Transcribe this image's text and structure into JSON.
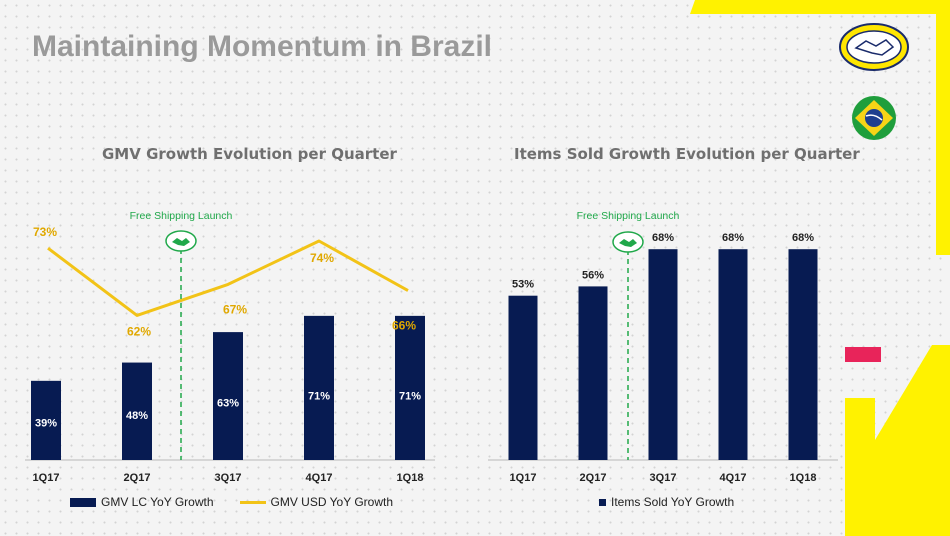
{
  "page": {
    "title": "Maintaining Momentum in Brazil"
  },
  "annotations": {
    "left_marker": "Free Shipping Launch",
    "right_marker": "Free Shipping Launch"
  },
  "colors": {
    "bar": "#071b52",
    "line": "#f2c317",
    "marker": "#20a84a",
    "accent_yellow": "#fff200",
    "accent_pink": "#e8245a"
  },
  "icons": {
    "logo": "handshake-logo-icon",
    "flag": "brazil-flag-icon",
    "marker": "handshake-icon"
  },
  "chart_data": [
    {
      "type": "bar",
      "title": "GMV Growth Evolution per Quarter",
      "categories": [
        "1Q17",
        "2Q17",
        "3Q17",
        "4Q17",
        "1Q18"
      ],
      "series": [
        {
          "name": "GMV LC YoY Growth",
          "type": "bar",
          "values": [
            39,
            48,
            63,
            71,
            71
          ],
          "labels": [
            "39%",
            "48%",
            "63%",
            "71%",
            "71%"
          ]
        },
        {
          "name": "GMV USD YoY Growth",
          "type": "line",
          "values": [
            73,
            62,
            67,
            74,
            66
          ],
          "labels": [
            "73%",
            "62%",
            "67%",
            "74%",
            "66%"
          ]
        }
      ],
      "annotation": "Free Shipping Launch",
      "legend": "bottom"
    },
    {
      "type": "bar",
      "title": "Items Sold Growth Evolution per Quarter",
      "categories": [
        "1Q17",
        "2Q17",
        "3Q17",
        "4Q17",
        "1Q18"
      ],
      "series": [
        {
          "name": "Items Sold YoY Growth",
          "values": [
            53,
            56,
            68,
            68,
            68
          ],
          "labels": [
            "53%",
            "56%",
            "68%",
            "68%",
            "68%"
          ]
        }
      ],
      "annotation": "Free Shipping Launch",
      "legend": "bottom"
    }
  ]
}
